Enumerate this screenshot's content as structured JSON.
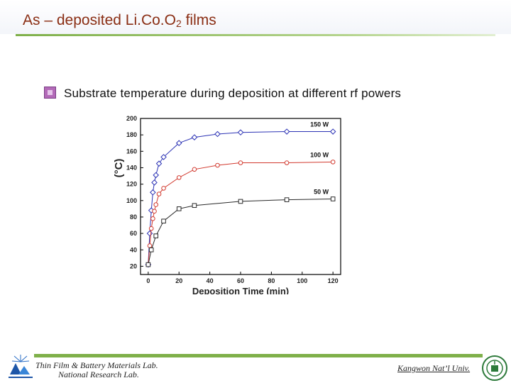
{
  "header": {
    "title_main": "As – deposited Li.Co.O",
    "title_sub": "2",
    "title_end": " films"
  },
  "subtitle": "Substrate temperature during deposition at different rf powers",
  "footer": {
    "lab_line1": "Thin Film & Battery Materials Lab.",
    "lab_line2": "National Research Lab.",
    "university": "Kangwon Nat’l Univ."
  },
  "chart_data": {
    "type": "line",
    "xlabel": "Deposition Time (min)",
    "ylabel": "(°C)",
    "xlim": [
      -5,
      125
    ],
    "ylim": [
      10,
      200
    ],
    "xticks": [
      0,
      20,
      40,
      60,
      80,
      100,
      120
    ],
    "yticks": [
      20,
      40,
      60,
      80,
      100,
      120,
      140,
      160,
      180,
      200
    ],
    "grid": false,
    "series": [
      {
        "name": "150 W",
        "color": "#2c33b5",
        "marker": "diamond",
        "x": [
          0,
          1,
          2,
          3,
          4,
          5,
          7,
          10,
          20,
          30,
          45,
          60,
          90,
          120
        ],
        "y": [
          22,
          60,
          88,
          110,
          122,
          131,
          145,
          153,
          170,
          177,
          181,
          183,
          184,
          184
        ]
      },
      {
        "name": "100 W",
        "color": "#d23a2f",
        "marker": "circle",
        "x": [
          0,
          1,
          2,
          3,
          4,
          5,
          7,
          10,
          20,
          30,
          45,
          60,
          90,
          120
        ],
        "y": [
          22,
          45,
          66,
          78,
          87,
          95,
          108,
          115,
          128,
          138,
          143,
          146,
          146,
          147
        ]
      },
      {
        "name": "50 W",
        "color": "#2a2a2a",
        "marker": "square",
        "x": [
          0,
          2,
          5,
          10,
          20,
          30,
          60,
          90,
          120
        ],
        "y": [
          22,
          40,
          57,
          75,
          90,
          94,
          99,
          101,
          102
        ]
      }
    ]
  },
  "colors": {
    "title": "#8a2e14",
    "accent_green": "#7fb04a"
  }
}
